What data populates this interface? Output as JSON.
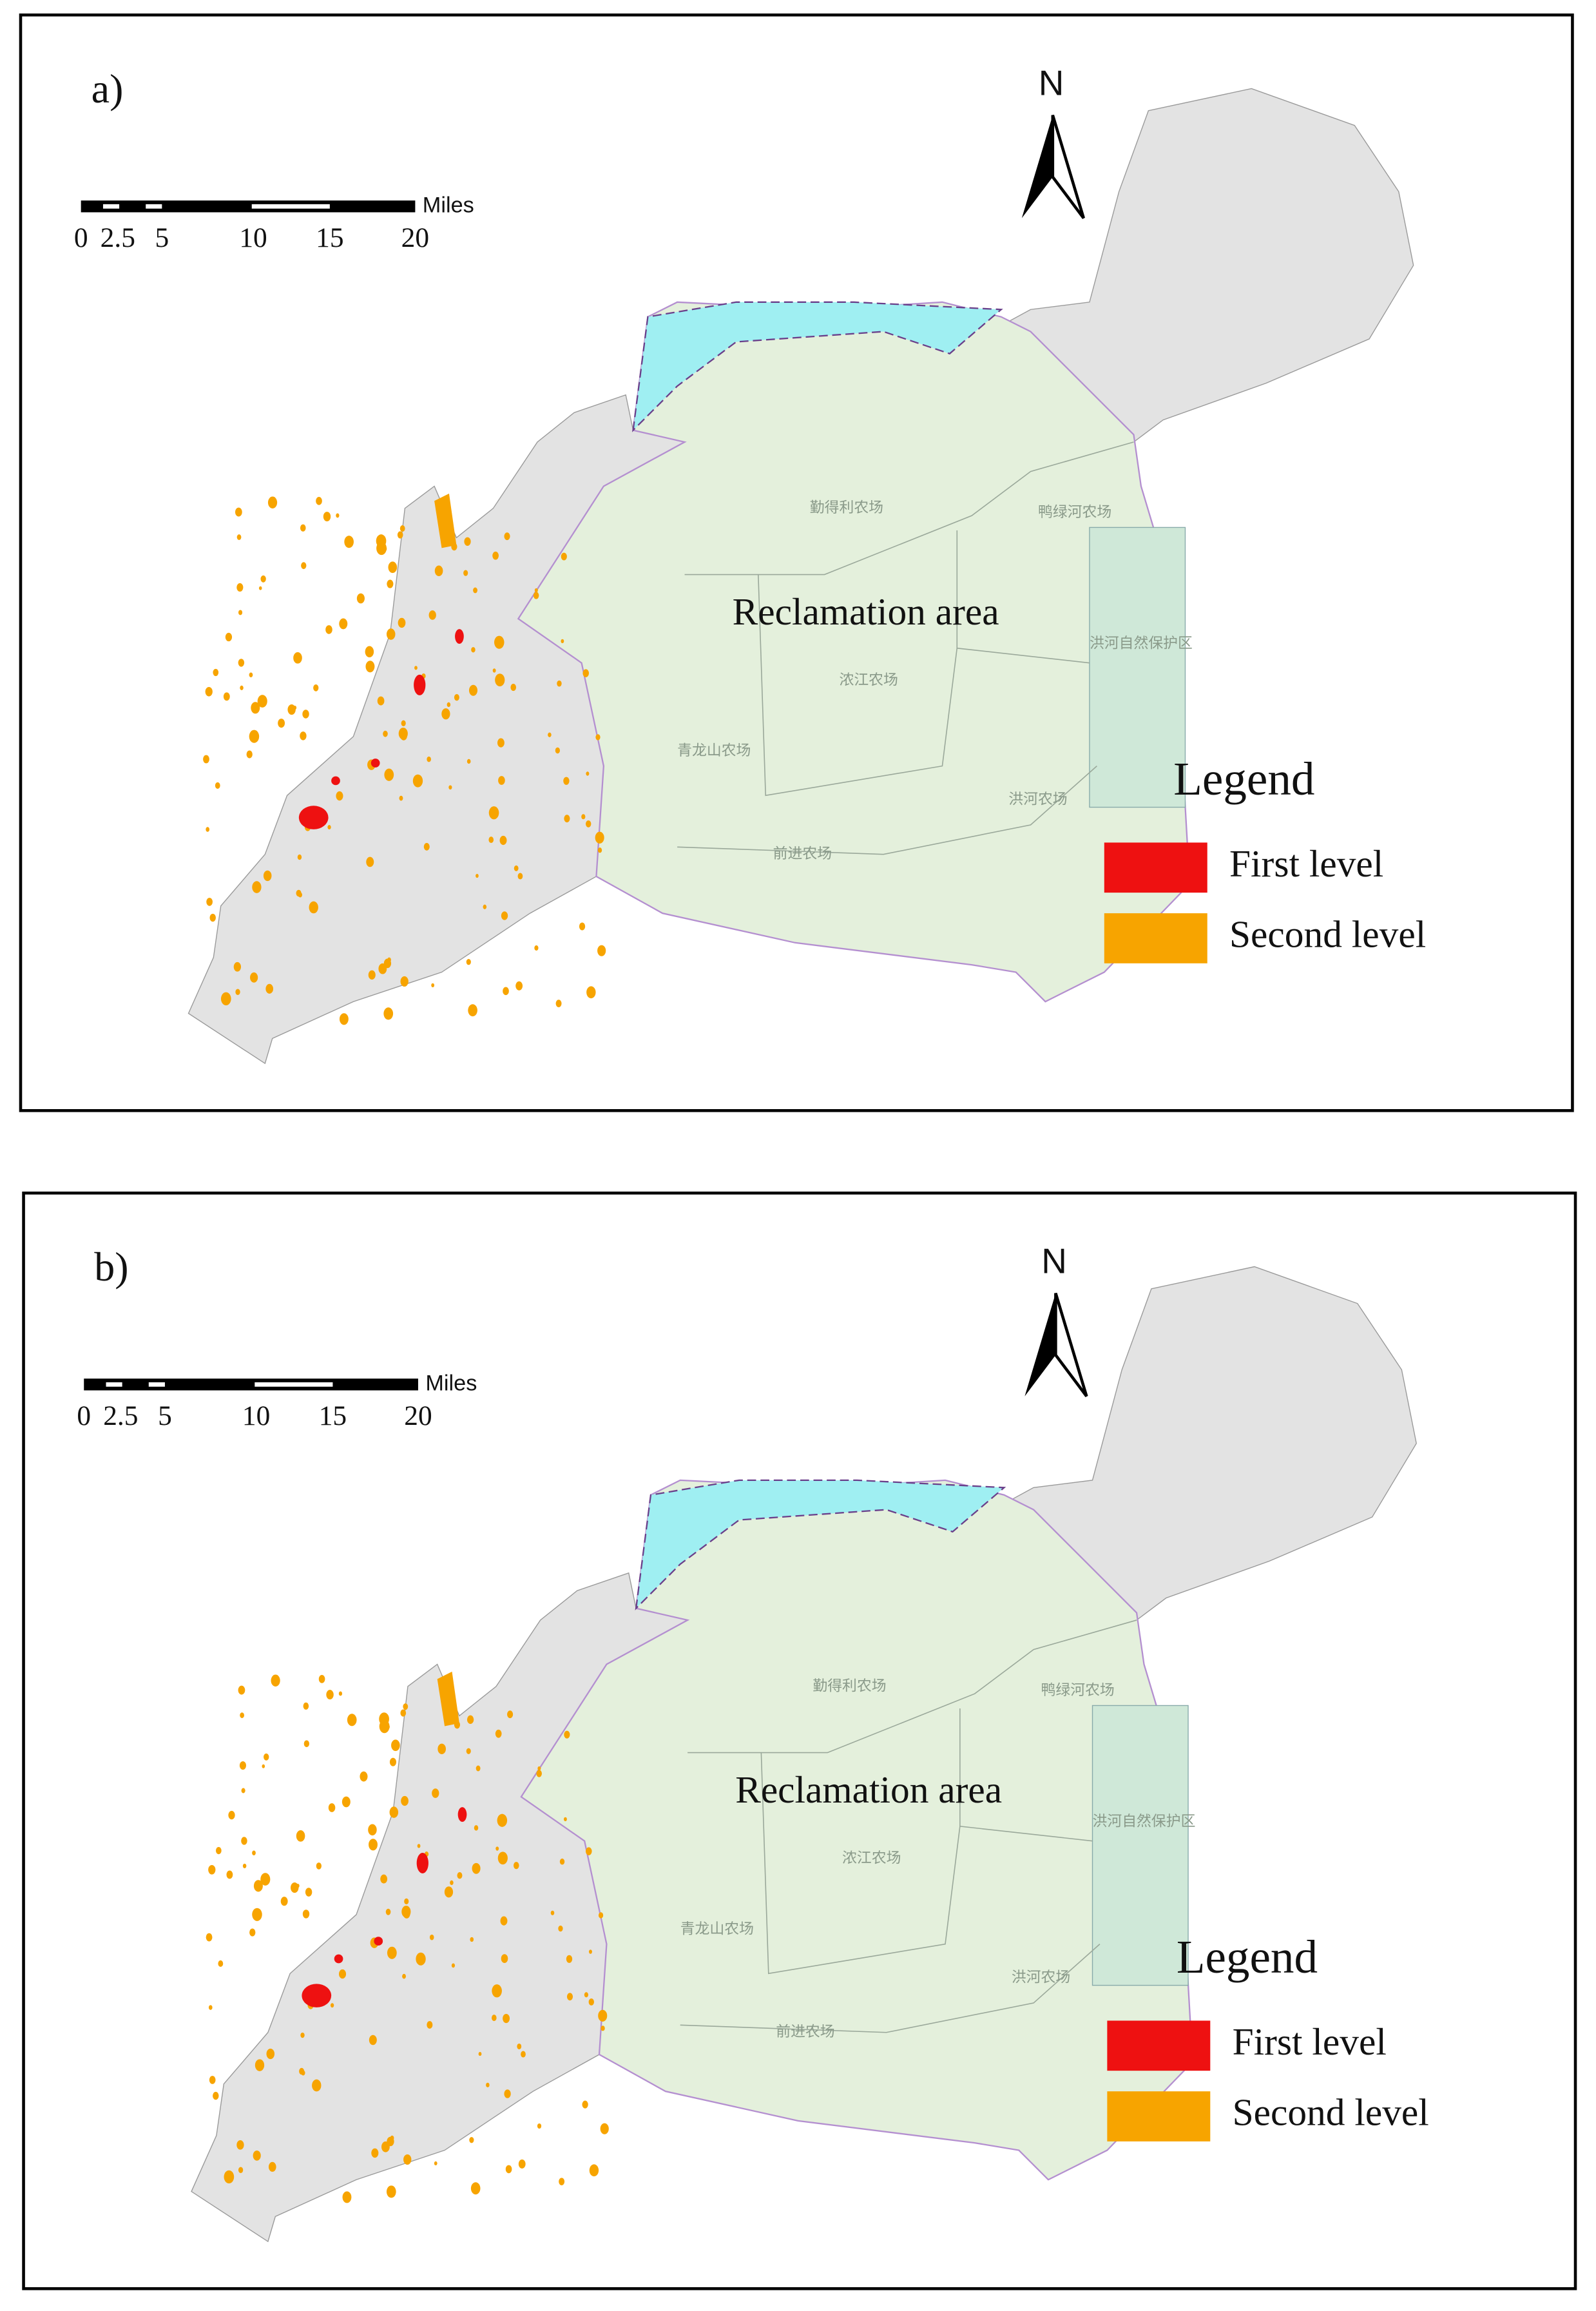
{
  "panels": [
    {
      "label": "a)",
      "north": "N",
      "scale_bar": {
        "ticks": [
          "0",
          "2.5",
          "5",
          "10",
          "15",
          "20"
        ],
        "unit": "Miles"
      },
      "area_label": "Reclamation area",
      "place_labels": [
        "勤得利农场",
        "鸭绿河农场",
        "浓江农场",
        "洪河自然保护区",
        "青龙山农场",
        "洪河农场",
        "前进农场"
      ],
      "legend": {
        "title": "Legend",
        "items": [
          {
            "label": "First level",
            "color": "#ee1111"
          },
          {
            "label": "Second level",
            "color": "#f7a400"
          }
        ]
      }
    },
    {
      "label": "b)",
      "north": "N",
      "scale_bar": {
        "ticks": [
          "0",
          "2.5",
          "5",
          "10",
          "15",
          "20"
        ],
        "unit": "Miles"
      },
      "area_label": "Reclamation area",
      "place_labels": [
        "勤得利农场",
        "鸭绿河农场",
        "浓江农场",
        "洪河自然保护区",
        "青龙山农场",
        "洪河农场",
        "前进农场"
      ],
      "legend": {
        "title": "Legend",
        "items": [
          {
            "label": "First level",
            "color": "#ee1111"
          },
          {
            "label": "Second level",
            "color": "#f7a400"
          }
        ]
      }
    }
  ]
}
